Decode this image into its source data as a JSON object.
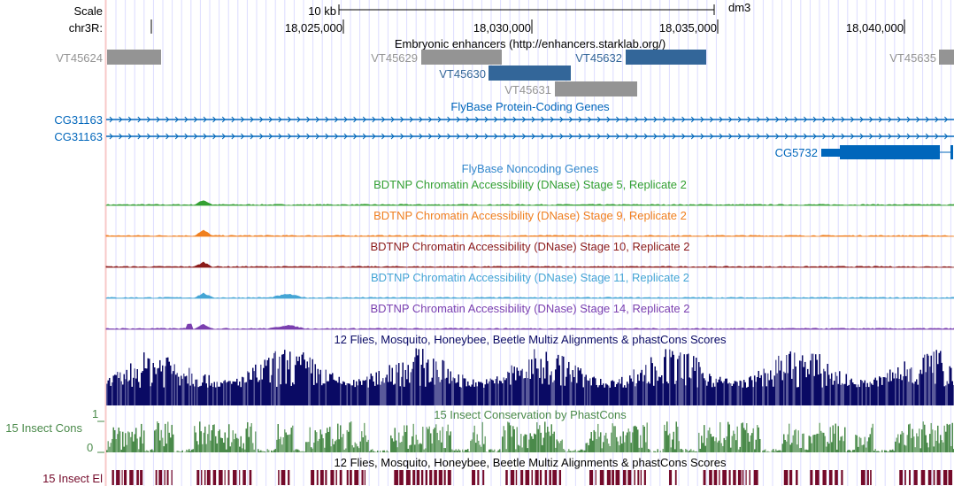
{
  "ruler": {
    "scale_label": "Scale",
    "scale_bar": "10 kb",
    "assembly": "dm3",
    "chrom_label": "chr3R:",
    "ticks": [
      "18,025,000",
      "18,030,000",
      "18,035,000",
      "18,040,000"
    ]
  },
  "tracks": {
    "enhancers": {
      "title": "Embryonic enhancers (http://enhancers.starklab.org/)",
      "items": [
        {
          "name": "VT45624",
          "color": "#949494"
        },
        {
          "name": "VT45629",
          "color": "#949494"
        },
        {
          "name": "VT45632",
          "color": "#336699"
        },
        {
          "name": "VT45635",
          "color": "#949494"
        },
        {
          "name": "VT45630",
          "color": "#336699"
        },
        {
          "name": "VT45631",
          "color": "#949494"
        }
      ]
    },
    "coding": {
      "title": "FlyBase Protein-Coding Genes",
      "genes": [
        "CG31163",
        "CG31163",
        "CG5732"
      ],
      "color": "#0066bb"
    },
    "noncoding": {
      "title": "FlyBase Noncoding Genes"
    },
    "dnase": [
      {
        "title": "BDTNP Chromatin Accessibility (DNase) Stage 5, Replicate 2",
        "color": "#33a033"
      },
      {
        "title": "BDTNP Chromatin Accessibility (DNase) Stage 9, Replicate 2",
        "color": "#f07f1f"
      },
      {
        "title": "BDTNP Chromatin Accessibility (DNase) Stage 10, Replicate 2",
        "color": "#8b1a1a"
      },
      {
        "title": "BDTNP Chromatin Accessibility (DNase) Stage 11, Replicate 2",
        "color": "#45a5d5"
      },
      {
        "title": "BDTNP Chromatin Accessibility (DNase) Stage 14, Replicate 2",
        "color": "#7a3faf"
      }
    ],
    "multiz": {
      "title": "12 Flies, Mosquito, Honeybee, Beetle Multiz Alignments & phastCons Scores",
      "color": "#0a0a64"
    },
    "cons": {
      "title": "15 Insect Conservation by PhastCons",
      "label": "15 Insect Cons",
      "max": "1",
      "min": "0",
      "color": "#4a8a4a"
    },
    "elements": {
      "title": "12 Flies, Mosquito, Honeybee, Beetle Multiz Alignments & phastCons Scores",
      "label": "15 Insect El",
      "color": "#740a2a"
    }
  }
}
